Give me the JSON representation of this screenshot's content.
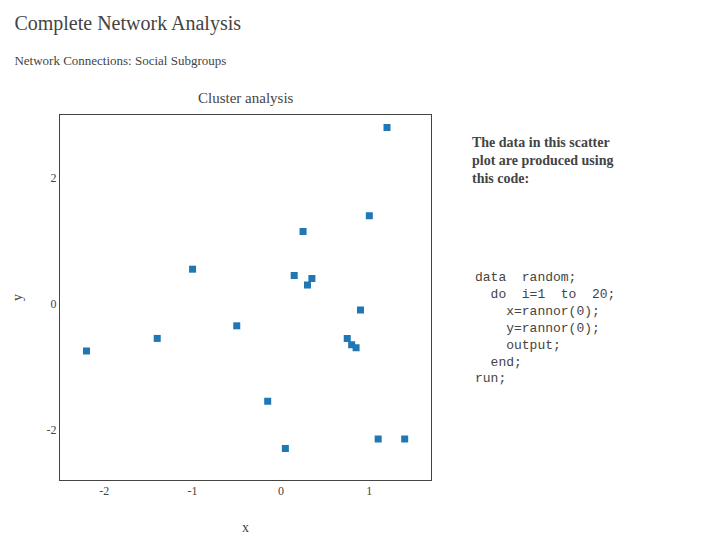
{
  "chart_data": {
    "type": "scatter",
    "title": "Complete Network Analysis",
    "subtitle": "Network Connections: Social Subgroups",
    "x_label": "x",
    "y_label": "y",
    "x": [
      -2.2,
      -1.4,
      -1.0,
      -0.5,
      -0.15,
      0.05,
      0.15,
      0.25,
      0.3,
      0.35,
      0.75,
      0.8,
      0.85,
      0.9,
      1.0,
      1.1,
      1.2,
      1.4
    ],
    "values": [
      -0.75,
      -0.55,
      0.55,
      -0.35,
      -1.55,
      -2.3,
      0.45,
      1.15,
      0.3,
      0.4,
      -0.55,
      -0.65,
      -0.7,
      -0.1,
      1.4,
      -2.15,
      2.8,
      -2.15
    ],
    "marker": "square",
    "xlim": [
      -2.5,
      1.7
    ],
    "ylim": [
      -2.8,
      3.0
    ],
    "xticks": [
      -2,
      -1,
      0,
      1
    ],
    "yticks": [
      -2,
      0,
      2
    ],
    "grid": false,
    "annotations": [
      "Cluster analysis",
      "The data in this scatter\nplot are produced using\nthis code:",
      "data  random;\n  do  i=1  to  20;\n    x=rannor(0);\n    y=rannor(0);\n    output;\n  end;\nrun;"
    ]
  }
}
